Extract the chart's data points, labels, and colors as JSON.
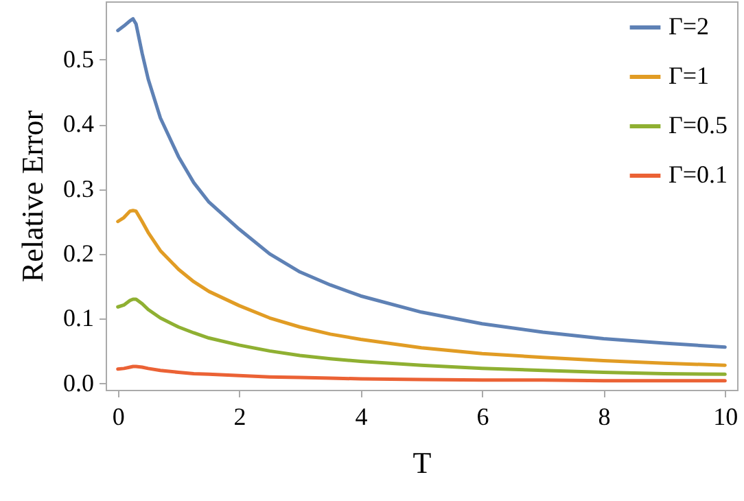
{
  "chart_data": {
    "type": "line",
    "xlabel": "T",
    "ylabel": "Relative Error",
    "x": [
      0,
      0.1,
      0.2,
      0.25,
      0.3,
      0.4,
      0.5,
      0.7,
      1,
      1.25,
      1.5,
      2,
      2.5,
      3,
      3.5,
      4,
      5,
      6,
      7,
      8,
      9,
      10
    ],
    "series": [
      {
        "name": "Γ=2",
        "color": "#5e81b5",
        "values": [
          0.545,
          0.552,
          0.56,
          0.563,
          0.555,
          0.51,
          0.47,
          0.41,
          0.35,
          0.31,
          0.28,
          0.238,
          0.2,
          0.172,
          0.152,
          0.135,
          0.11,
          0.092,
          0.079,
          0.069,
          0.062,
          0.056
        ]
      },
      {
        "name": "Γ=1",
        "color": "#e19c24",
        "values": [
          0.25,
          0.256,
          0.266,
          0.267,
          0.266,
          0.25,
          0.233,
          0.205,
          0.176,
          0.157,
          0.142,
          0.12,
          0.101,
          0.087,
          0.076,
          0.068,
          0.055,
          0.046,
          0.04,
          0.035,
          0.031,
          0.028
        ]
      },
      {
        "name": "Γ=0.5",
        "color": "#8fb032",
        "values": [
          0.118,
          0.121,
          0.128,
          0.13,
          0.13,
          0.123,
          0.114,
          0.101,
          0.087,
          0.078,
          0.07,
          0.059,
          0.05,
          0.043,
          0.038,
          0.034,
          0.028,
          0.023,
          0.02,
          0.017,
          0.015,
          0.014
        ]
      },
      {
        "name": "Γ=0.1",
        "color": "#eb6235",
        "values": [
          0.022,
          0.023,
          0.025,
          0.026,
          0.026,
          0.025,
          0.023,
          0.02,
          0.017,
          0.015,
          0.014,
          0.012,
          0.01,
          0.009,
          0.008,
          0.007,
          0.006,
          0.005,
          0.005,
          0.004,
          0.004,
          0.004
        ]
      }
    ],
    "xlim": [
      -0.2,
      10.2
    ],
    "xticks": [
      0,
      2,
      4,
      6,
      8,
      10
    ],
    "ylim": [
      -0.01,
      0.59
    ],
    "yticks": [
      {
        "value": 0,
        "label": "0.0"
      },
      {
        "value": 0.1,
        "label": "0.1"
      },
      {
        "value": 0.2,
        "label": "0.2"
      },
      {
        "value": 0.3,
        "label": "0.3"
      },
      {
        "value": 0.4,
        "label": "0.4"
      },
      {
        "value": 0.5,
        "label": "0.5"
      }
    ],
    "grid": false,
    "legend": "top right"
  }
}
